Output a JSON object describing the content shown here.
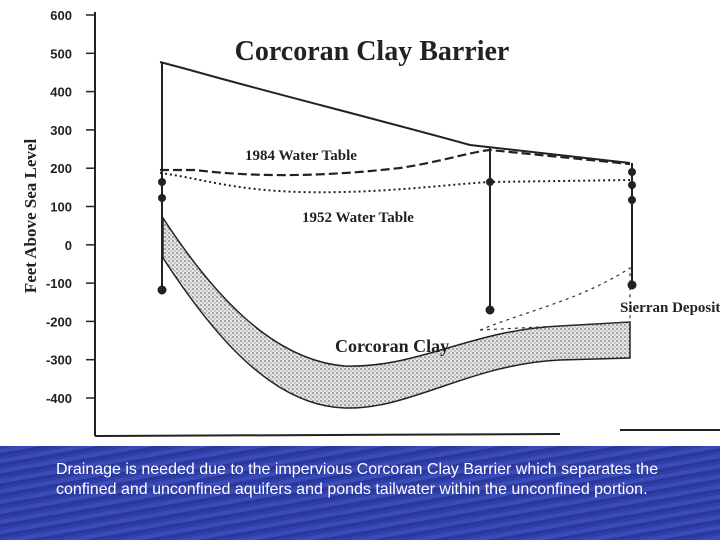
{
  "title": "Corcoran Clay Barrier",
  "axis_label": "Feet Above Sea Level",
  "ticks": [
    "600",
    "500",
    "400",
    "300",
    "200",
    "100",
    "0",
    "-100",
    "-200",
    "-300",
    "-400"
  ],
  "annotations": {
    "water_1984": "1984 Water Table",
    "water_1952": "1952 Water Table",
    "clay": "Corcoran Clay",
    "sierran": "Sierran Deposit"
  },
  "caption": "Drainage is needed due to the impervious Corcoran Clay Barrier which separates the confined and unconfined aquifers and ponds tailwater within the unconfined portion."
}
